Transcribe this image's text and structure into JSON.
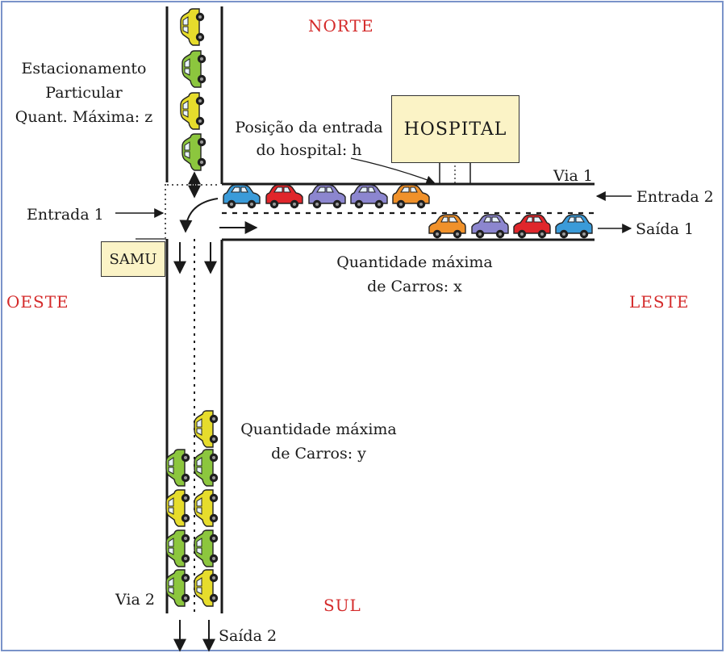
{
  "directions": {
    "north": "NORTE",
    "south": "SUL",
    "west": "OESTE",
    "east": "LESTE"
  },
  "parking": {
    "line1": "Estacionamento",
    "line2": "Particular",
    "line3": "Quant. Máxima: z"
  },
  "hospital_label": "HOSPITAL",
  "hospital_entry": {
    "line1": "Posição da entrada",
    "line2": "do hospital: h"
  },
  "samu_label": "SAMU",
  "road1": {
    "name": "Via 1",
    "entry": "Entrada 2",
    "exit": "Saída 1",
    "capacity_line1": "Quantidade máxima",
    "capacity_line2": "de Carros: x"
  },
  "road2": {
    "name": "Via 2",
    "exit": "Saída 2",
    "capacity_line1": "Quantidade máxima",
    "capacity_line2": "de Carros: y"
  },
  "entry1": "Entrada 1",
  "colors": {
    "title_red": "#d42a2a",
    "box_fill": "#fbf3c6",
    "frame_blue": "#7a93c9",
    "car_blue": "#3a9bd9",
    "car_red": "#e0262b",
    "car_purple": "#8c86cf",
    "car_orange": "#f0912a",
    "car_yellow": "#e6dc2c",
    "car_green": "#8cc63e"
  },
  "icons": {
    "car": "car-icon",
    "arrow": "arrow-icon",
    "double_arrow": "double-arrow-icon"
  }
}
